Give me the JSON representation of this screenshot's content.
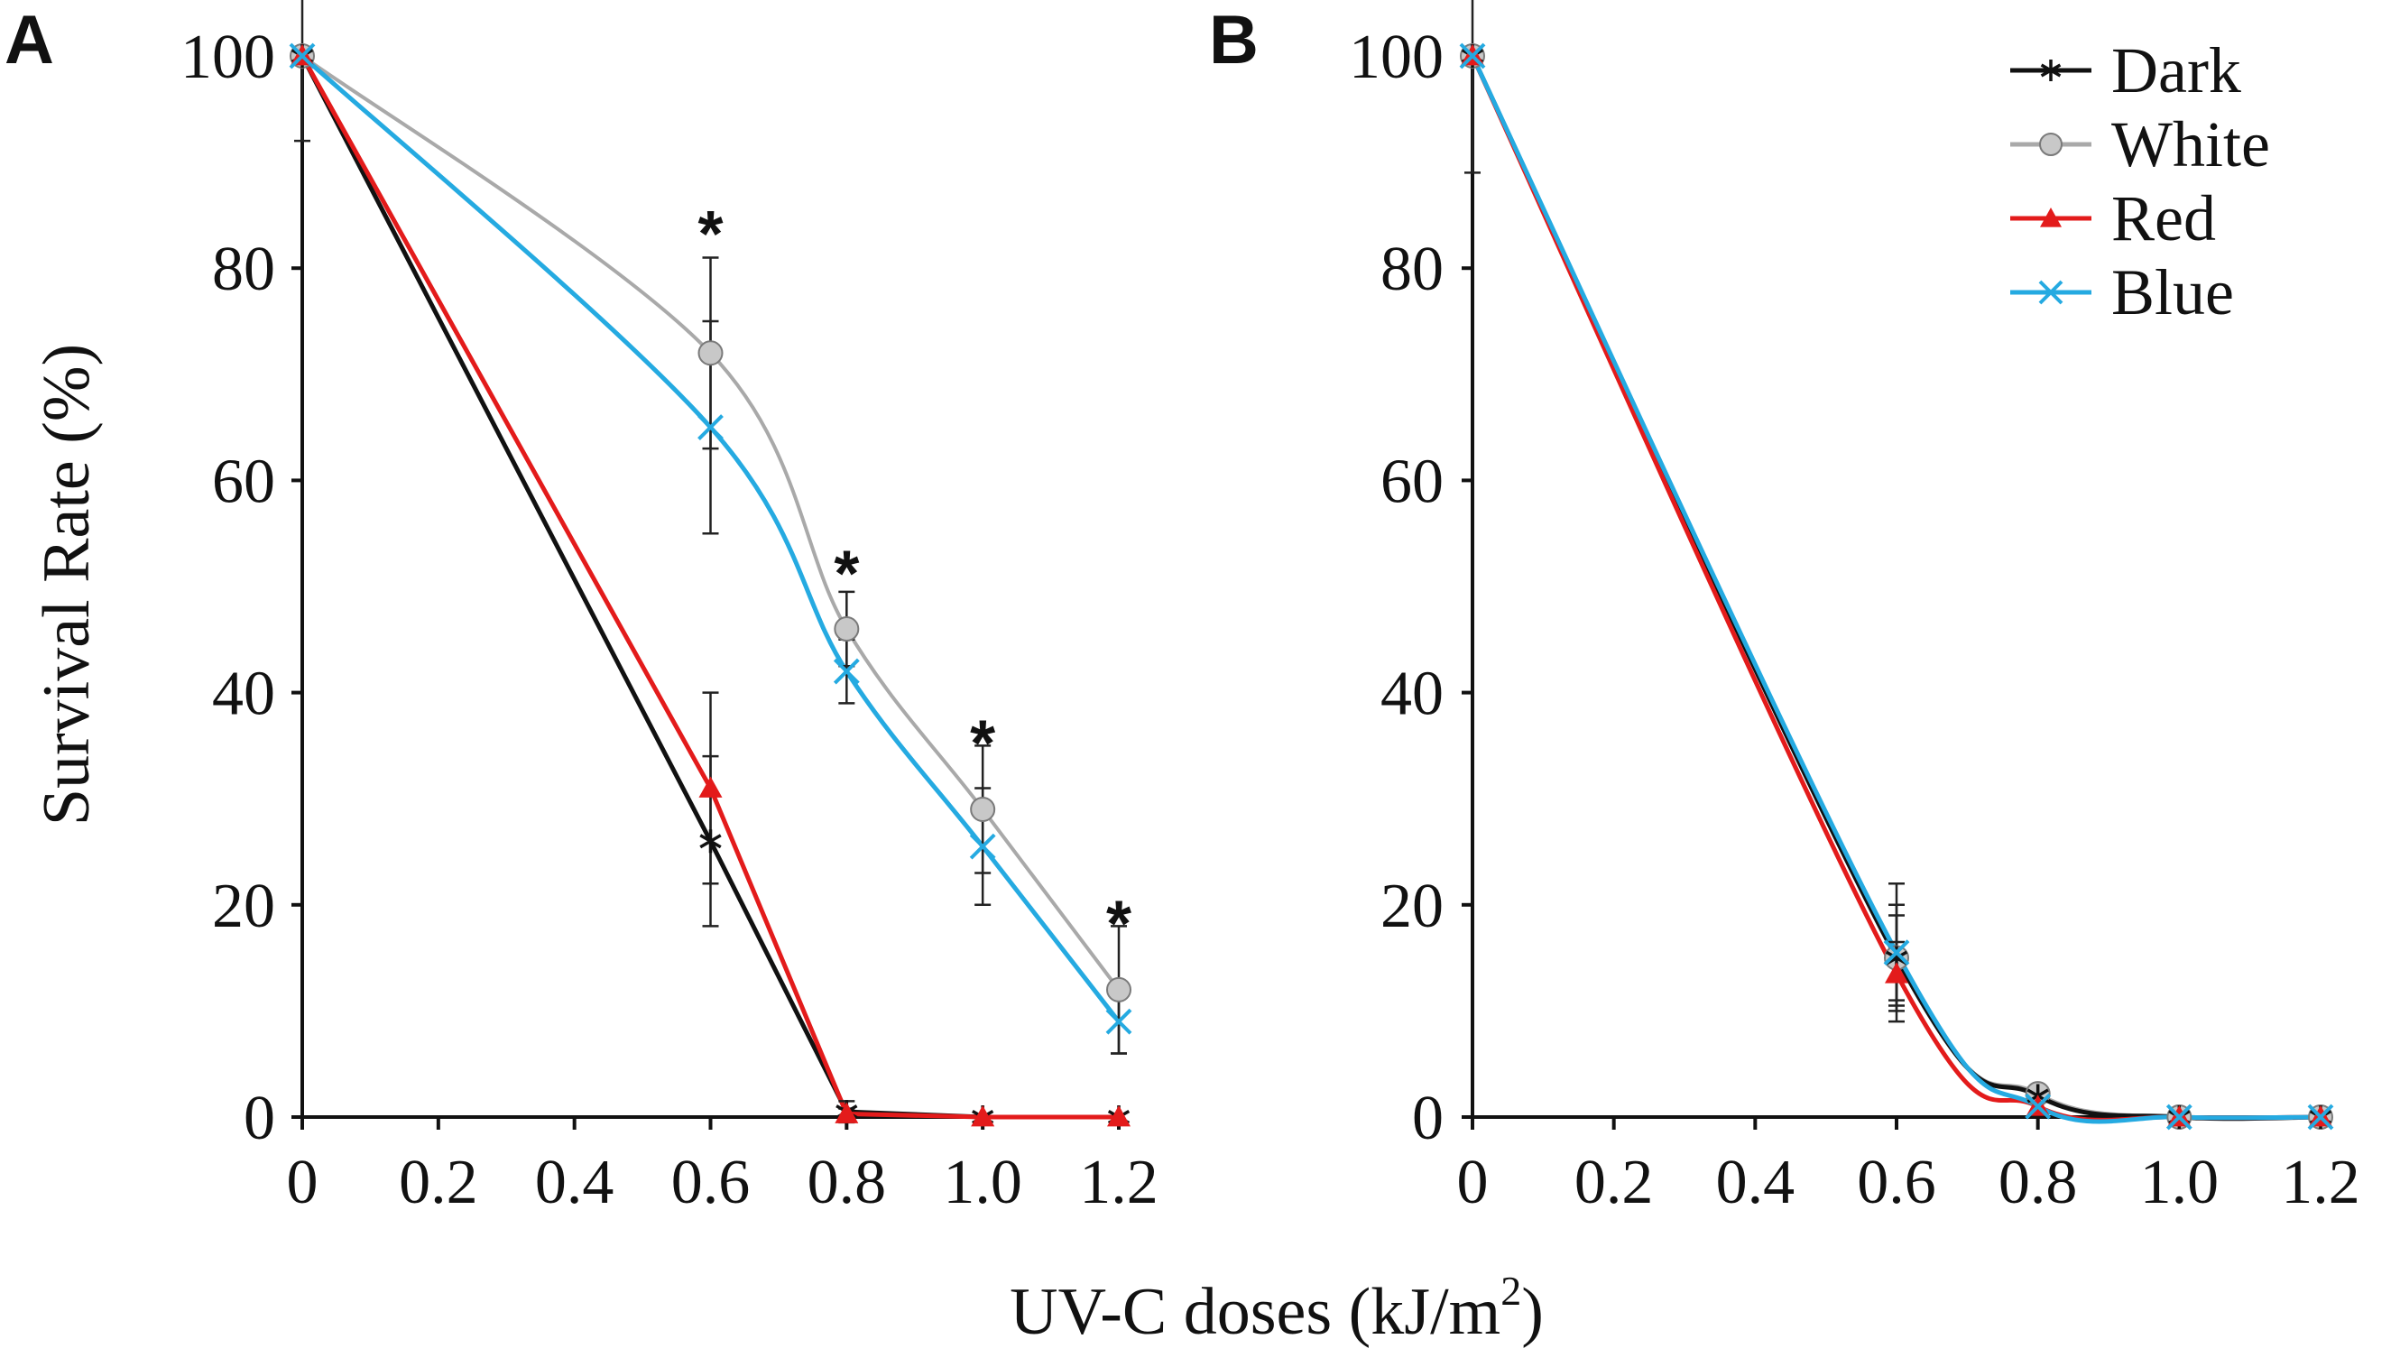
{
  "figure": {
    "xlabel_main": "UV-C doses (kJ/m",
    "xlabel_sup": "2",
    "xlabel_close": ")",
    "ylabel": "Survival Rate (%)"
  },
  "legend": {
    "placement": "top-right of panel B",
    "items": [
      {
        "name": "Dark",
        "color": "#111111",
        "marker": "asterisk"
      },
      {
        "name": "White",
        "color": "#a9a9a9",
        "marker": "circle"
      },
      {
        "name": "Red",
        "color": "#e31b1b",
        "marker": "triangle"
      },
      {
        "name": "Blue",
        "color": "#25aae1",
        "marker": "x"
      }
    ]
  },
  "chart_data": [
    {
      "panel": "A",
      "type": "line",
      "x": [
        0,
        0.6,
        0.8,
        1.0,
        1.2
      ],
      "xticks": [
        "0",
        "0.2",
        "0.4",
        "0.6",
        "0.8",
        "1.0",
        "1.2"
      ],
      "xlim": [
        0,
        1.2
      ],
      "yticks": [
        "0",
        "20",
        "40",
        "60",
        "80",
        "100"
      ],
      "ylim": [
        0,
        100
      ],
      "series": [
        {
          "name": "Dark",
          "values": [
            100,
            26,
            0.5,
            0,
            0
          ],
          "errors": [
            8,
            8,
            1,
            0,
            0
          ]
        },
        {
          "name": "White",
          "values": [
            100,
            72,
            46,
            29,
            12
          ],
          "errors": [
            0,
            9,
            3.5,
            6,
            6
          ]
        },
        {
          "name": "Red",
          "values": [
            100,
            31,
            0.3,
            0,
            0
          ],
          "errors": [
            0,
            9,
            0.5,
            0,
            0
          ]
        },
        {
          "name": "Blue",
          "values": [
            100,
            65,
            42,
            25.5,
            9
          ],
          "errors": [
            0,
            10,
            3,
            5.5,
            3
          ]
        }
      ],
      "annotations": [
        {
          "x": 0.6,
          "y": 84,
          "text": "*"
        },
        {
          "x": 0.8,
          "y": 52,
          "text": "*"
        },
        {
          "x": 1.0,
          "y": 36,
          "text": "*"
        },
        {
          "x": 1.2,
          "y": 19,
          "text": "*"
        }
      ]
    },
    {
      "panel": "B",
      "type": "line",
      "x": [
        0,
        0.6,
        0.8,
        1.0,
        1.2
      ],
      "xticks": [
        "0",
        "0.2",
        "0.4",
        "0.6",
        "0.8",
        "1.0",
        "1.2"
      ],
      "xlim": [
        0,
        1.2
      ],
      "yticks": [
        "0",
        "20",
        "40",
        "60",
        "80",
        "100"
      ],
      "ylim": [
        0,
        100
      ],
      "series": [
        {
          "name": "Dark",
          "values": [
            100,
            15,
            2,
            0,
            0
          ],
          "errors": [
            11,
            5,
            0.5,
            0,
            0
          ]
        },
        {
          "name": "White",
          "values": [
            100,
            15,
            2.2,
            0,
            0
          ],
          "errors": [
            0,
            4,
            0.5,
            0,
            0
          ]
        },
        {
          "name": "Red",
          "values": [
            100,
            13.5,
            1,
            0,
            0
          ],
          "errors": [
            0,
            3,
            0.5,
            0,
            0
          ]
        },
        {
          "name": "Blue",
          "values": [
            100,
            15.5,
            1,
            0,
            0
          ],
          "errors": [
            0,
            6.5,
            0.5,
            0,
            0
          ]
        }
      ],
      "annotations": []
    }
  ]
}
